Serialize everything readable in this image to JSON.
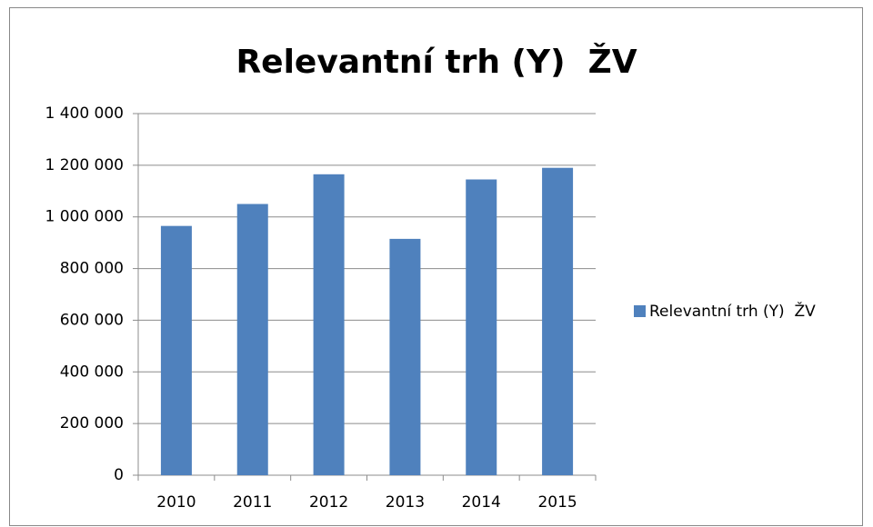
{
  "chart_data": {
    "type": "bar",
    "title": "Relevantní trh (Y)  ŽV",
    "categories": [
      "2010",
      "2011",
      "2012",
      "2013",
      "2014",
      "2015"
    ],
    "series": [
      {
        "name": "Relevantní trh (Y)  ŽV",
        "color": "#4f81bd",
        "values": [
          965000,
          1050000,
          1165000,
          915000,
          1145000,
          1190000
        ]
      }
    ],
    "ylim": [
      0,
      1400000
    ],
    "yticks": [
      0,
      {
        "value": 200000,
        "label": "200 000"
      },
      {
        "value": 400000,
        "label": "400 000"
      },
      {
        "value": 600000,
        "label": "600 000"
      },
      {
        "value": 800000,
        "label": "800 000"
      },
      {
        "value": 1000000,
        "label": "1 000 000"
      },
      {
        "value": 1200000,
        "label": "1 200 000"
      },
      {
        "value": 1400000,
        "label": "1 400 000"
      }
    ],
    "grid": true,
    "legend": "right"
  }
}
